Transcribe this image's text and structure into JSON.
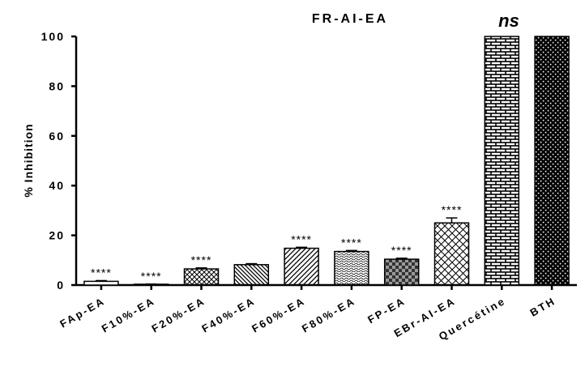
{
  "chart_data": {
    "type": "bar",
    "title": "FR-AI-EA",
    "annotation": "ns",
    "ylabel": "% Inhibition",
    "xlabel": "",
    "ylim": [
      0,
      100
    ],
    "yticks": [
      0,
      20,
      40,
      60,
      80,
      100
    ],
    "grid": false,
    "legend": "none",
    "categories": [
      "FAp-EA",
      "F10%-EA",
      "F20%-EA",
      "F40%-EA",
      "F60%-EA",
      "F80%-EA",
      "FP-EA",
      "EBr-AI-EA",
      "Quercétine",
      "BTH"
    ],
    "values": [
      1.5,
      0.3,
      6.5,
      8.2,
      14.8,
      13.5,
      10.4,
      25.0,
      100,
      100
    ],
    "errors": [
      0.3,
      0.1,
      0.4,
      0.4,
      0.4,
      0.4,
      0.4,
      2.0,
      0,
      0
    ],
    "significance": [
      "****",
      "****",
      "****",
      "",
      "****",
      "****",
      "****",
      "****",
      "",
      ""
    ],
    "patterns": [
      "blank",
      "blank",
      "diagonal-cross",
      "diagonal-back",
      "diagonal-forward",
      "dots",
      "checker",
      "diamond-cross",
      "brick",
      "brick-dense"
    ]
  }
}
